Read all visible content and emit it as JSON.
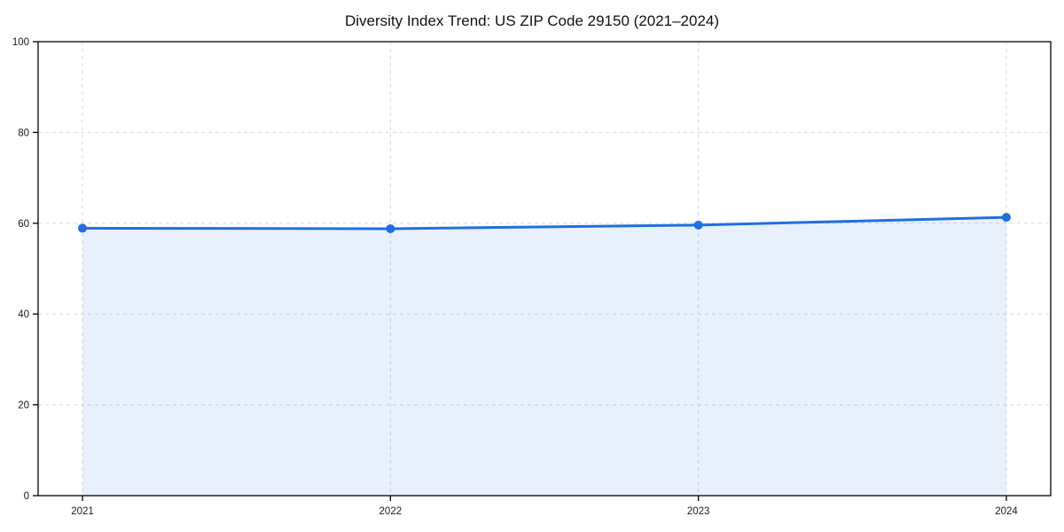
{
  "chart_data": {
    "type": "area",
    "title": "Diversity Index Trend: US ZIP Code 29150 (2021–2024)",
    "categories": [
      "2021",
      "2022",
      "2023",
      "2024"
    ],
    "series": [
      {
        "name": "Diversity Index",
        "values": [
          58.9,
          58.8,
          59.6,
          61.3
        ]
      }
    ],
    "xlabel": "",
    "ylabel": "",
    "ylim": [
      0,
      100
    ],
    "yticks": [
      0,
      20,
      40,
      60,
      80,
      100
    ],
    "grid": true,
    "grid_style": "dashed",
    "legend": false,
    "colors": {
      "line": "#1f6fe0",
      "marker": "#1f6fe0",
      "area_fill": "rgba(31,111,224,0.10)",
      "grid": "#d9d9d9",
      "axis": "#000000",
      "tick_text": "#1a1a1a"
    },
    "marker": "circle",
    "area_to_zero": true
  }
}
